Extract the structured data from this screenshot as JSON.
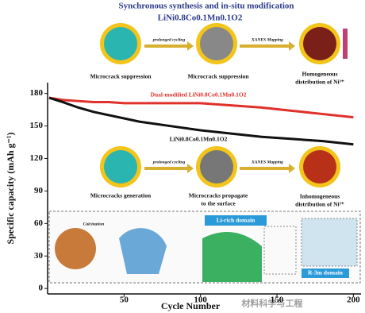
{
  "chart_data": {
    "type": "line",
    "title": "Synchronous synthesis and in-situ modification",
    "subtitle": "LiNi0.8Co0.1Mn0.1O2",
    "x_label": "Cycle Number",
    "y_label": "Specific capacity (mAh g⁻¹)",
    "xlim": [
      0,
      205
    ],
    "xticks": [
      50,
      100,
      150,
      200
    ],
    "ylim": [
      -5,
      190
    ],
    "yticks": [
      0,
      30,
      60,
      90,
      120,
      150,
      180
    ],
    "series": [
      {
        "name": "Dual-modified LiNi0.8Co0.1Mn0.1O2",
        "color": "#e0302a",
        "x": [
          1,
          10,
          20,
          30,
          40,
          50,
          60,
          80,
          100,
          120,
          140,
          160,
          180,
          200
        ],
        "values": [
          176,
          174,
          173,
          172,
          172,
          171,
          171,
          171,
          171,
          169,
          167,
          164,
          161,
          158
        ]
      },
      {
        "name": "LiNi0.8Co0.1Mn0.1O2",
        "color": "#111111",
        "x": [
          1,
          10,
          20,
          30,
          40,
          50,
          60,
          80,
          100,
          120,
          140,
          160,
          180,
          200
        ],
        "values": [
          176,
          172,
          167,
          163,
          160,
          157,
          154,
          150,
          146,
          143,
          140,
          138,
          136,
          133
        ]
      }
    ],
    "annotations": {
      "top": [
        "Microcrack suppression",
        "prolonged cycling",
        "XANES Mapping",
        "Microcrack suppression",
        "Homogeneous",
        "distribution  of Ni³⁺"
      ],
      "bottom": [
        "Microcracks generation",
        "prolonged cycling",
        "XANES Mapping",
        "Microcracks propagate",
        "to the surface",
        "Inhomogeneous",
        "distribution  of Ni³⁺"
      ],
      "synthesis": [
        "Calcination",
        "Li-rich domain",
        "R-3m domain"
      ],
      "watermark": "材料科学与工程"
    }
  }
}
